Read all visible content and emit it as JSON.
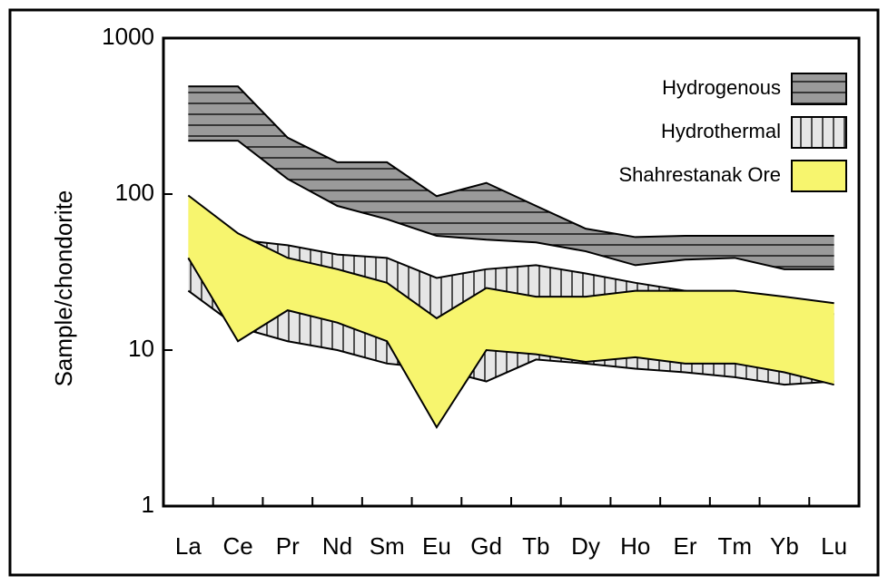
{
  "chart_data": {
    "type": "band",
    "y_label": "Sample/chondorite",
    "categories": [
      "La",
      "Ce",
      "Pr",
      "Nd",
      "Sm",
      "Eu",
      "Gd",
      "Tb",
      "Dy",
      "Ho",
      "Er",
      "Tm",
      "Yb",
      "Lu"
    ],
    "log_scale": true,
    "ylim": [
      1,
      1000
    ],
    "yticks": [
      1,
      10,
      100,
      1000
    ],
    "legend": "upper right",
    "series": [
      {
        "name": "Hydrogenous",
        "color": "#9a9a9a",
        "hatch": "horizontal",
        "upper": [
          490,
          490,
          230,
          160,
          160,
          97,
          118,
          84,
          60,
          53,
          54,
          54,
          54,
          54
        ],
        "lower": [
          220,
          220,
          125,
          84,
          69,
          54,
          51,
          49,
          43,
          35,
          38,
          39,
          33,
          33
        ]
      },
      {
        "name": "Hydrothermal",
        "color": "#e6e6e6",
        "hatch": "vertical",
        "upper": [
          38,
          51,
          47,
          41,
          39,
          29,
          33,
          35,
          31,
          27,
          24,
          21,
          18,
          17
        ],
        "lower": [
          24,
          14,
          11.4,
          10,
          8.2,
          7.6,
          6.3,
          8.7,
          8.2,
          7.6,
          7.2,
          6.7,
          6,
          6.3
        ]
      },
      {
        "name": "Shahrestanak Ore",
        "color": "#f7f56e",
        "hatch": "none",
        "upper": [
          98,
          56,
          39,
          33,
          27,
          16,
          25,
          22,
          22,
          24,
          24,
          24,
          22,
          20
        ],
        "lower": [
          39,
          11.4,
          18,
          15,
          11.4,
          3.2,
          10,
          9.4,
          8.4,
          9,
          8.2,
          8.2,
          7.2,
          6
        ]
      }
    ]
  }
}
